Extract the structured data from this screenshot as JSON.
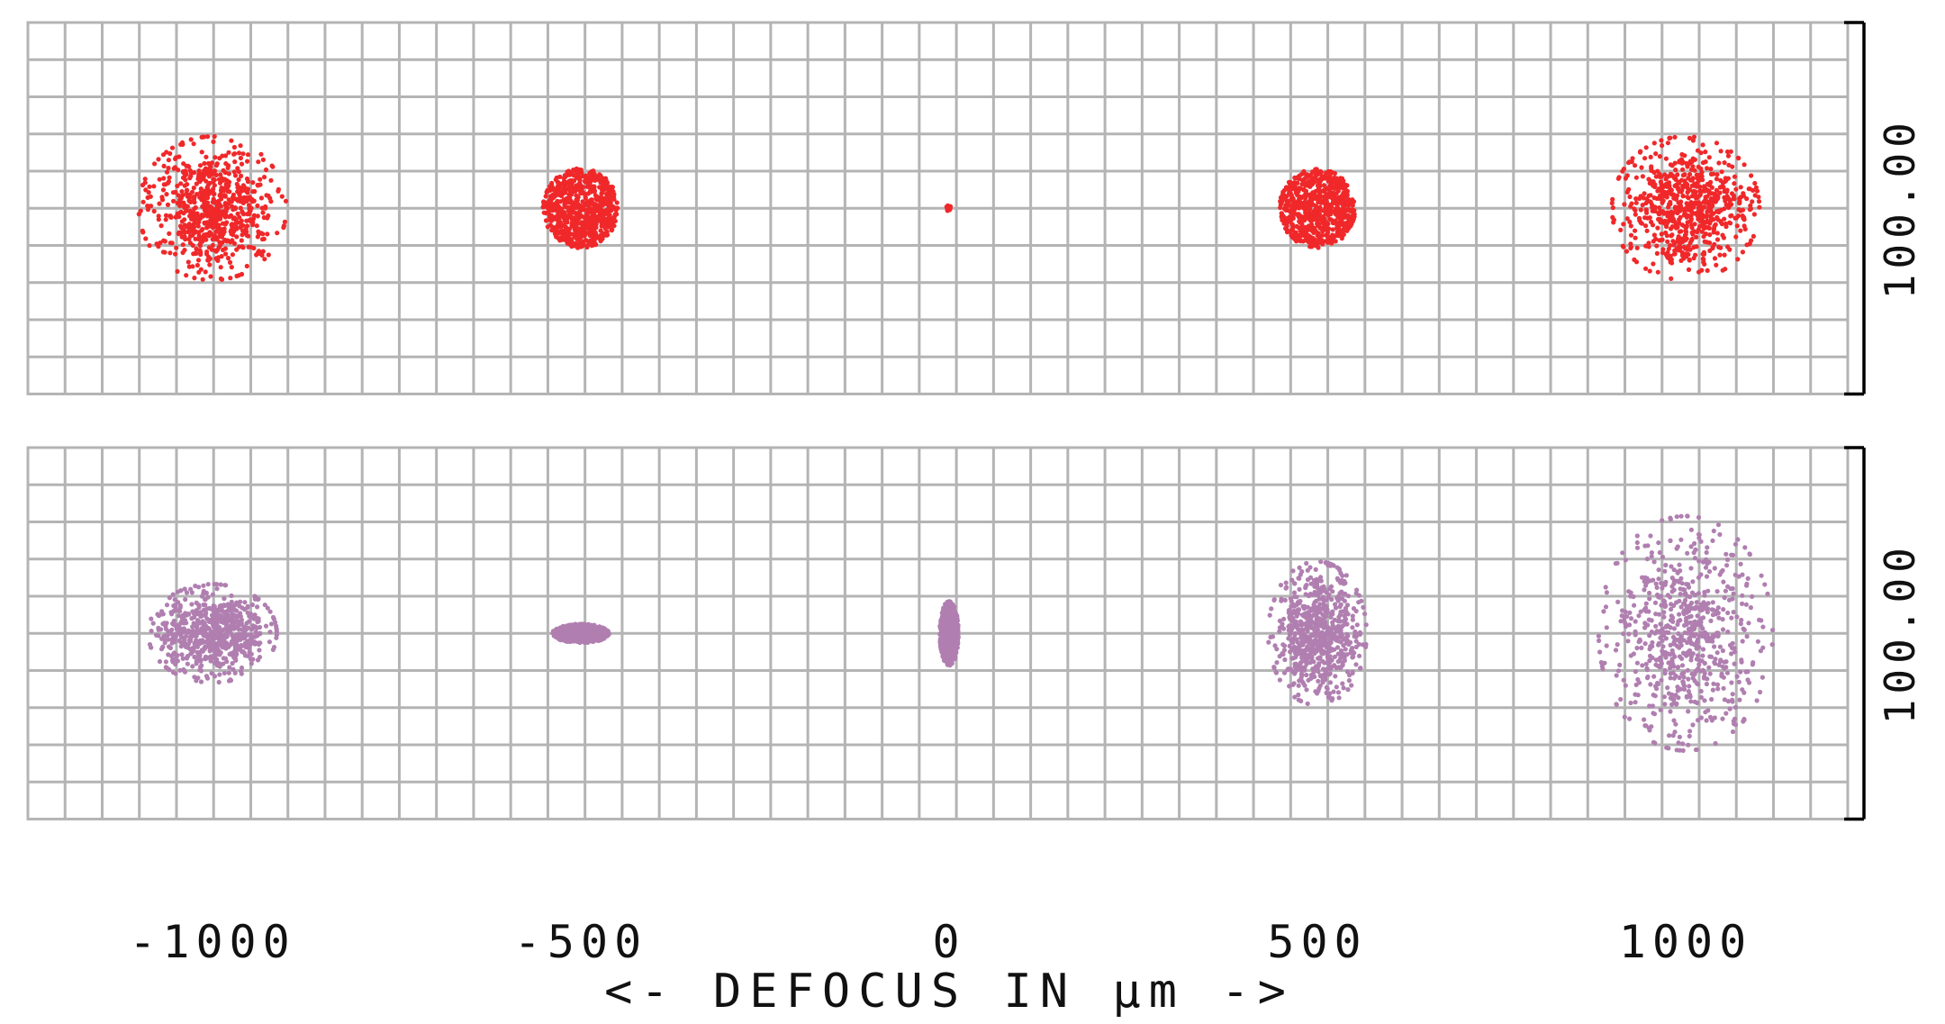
{
  "chart_data": {
    "type": "scatter",
    "title": "",
    "xlabel": "<- DEFOCUS IN µm ->",
    "x_tick_labels": [
      "-1000",
      "-500",
      "0",
      "500",
      "1000"
    ],
    "x_tick_values": [
      -1000,
      -500,
      0,
      500,
      1000
    ],
    "grid": true,
    "scale_bar_label": "100.00",
    "panels": [
      {
        "name": "",
        "color": "#f0282a",
        "spots": [
          {
            "defocus": -1000,
            "rx": 39,
            "ry": 38,
            "n": 700
          },
          {
            "defocus": -500,
            "rx": 20,
            "ry": 21,
            "n": 700,
            "dense": true
          },
          {
            "defocus": 0,
            "rx": 1.5,
            "ry": 1.5,
            "n": 20
          },
          {
            "defocus": 500,
            "rx": 20,
            "ry": 21,
            "n": 700,
            "dense": true
          },
          {
            "defocus": 1000,
            "rx": 39,
            "ry": 38,
            "n": 700
          }
        ]
      },
      {
        "name": "",
        "color": "#b07fb0",
        "spots": [
          {
            "defocus": -1000,
            "rx": 34,
            "ry": 26,
            "n": 700
          },
          {
            "defocus": -500,
            "rx": 15,
            "ry": 5,
            "n": 600,
            "dense": true
          },
          {
            "defocus": 0,
            "rx": 5,
            "ry": 17,
            "n": 600,
            "dense": true
          },
          {
            "defocus": 500,
            "rx": 26,
            "ry": 38,
            "n": 700
          },
          {
            "defocus": 1000,
            "rx": 46,
            "ry": 62,
            "n": 700
          }
        ]
      }
    ]
  }
}
